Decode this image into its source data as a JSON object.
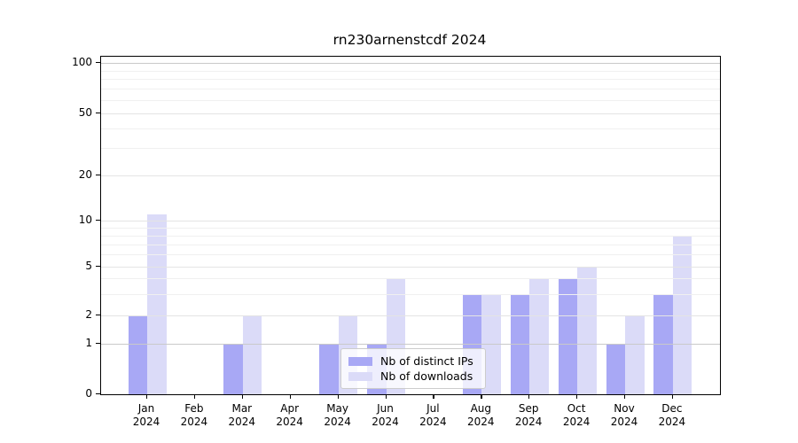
{
  "chart_data": {
    "type": "bar",
    "title": "rn230arnenstcdf 2024",
    "categories": [
      "Jan 2024",
      "Feb 2024",
      "Mar 2024",
      "Apr 2024",
      "May 2024",
      "Jun 2024",
      "Jul 2024",
      "Aug 2024",
      "Sep 2024",
      "Oct 2024",
      "Nov 2024",
      "Dec 2024"
    ],
    "series": [
      {
        "name": "Nb of distinct IPs",
        "key": "ips",
        "color": "#a8a8f5",
        "values": [
          2,
          0,
          1,
          0,
          1,
          1,
          0,
          3,
          3,
          4,
          1,
          3
        ]
      },
      {
        "name": "Nb of downloads",
        "key": "downloads",
        "color": "#dbdbf8",
        "values": [
          11,
          0,
          2,
          0,
          2,
          4,
          0,
          3,
          4,
          5,
          2,
          8
        ]
      }
    ],
    "yscale": "symlog",
    "ylim": [
      0,
      100
    ],
    "yticks": [
      0,
      1,
      2,
      5,
      10,
      20,
      50,
      100
    ],
    "xlabel": "",
    "ylabel": "",
    "grid": true,
    "legend_position": "lower center",
    "colors": {
      "grid_minor": "#f0f0f0",
      "grid_major": "#e4e4e4",
      "grid_strong": "#c9c9c9",
      "spine": "#000000"
    }
  }
}
